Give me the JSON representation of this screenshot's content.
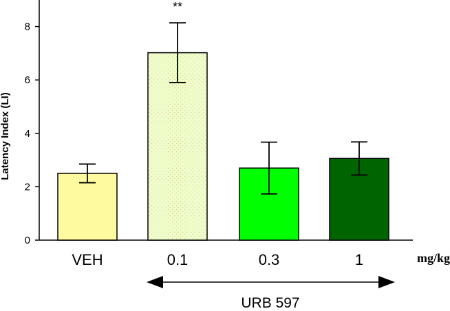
{
  "chart_data": {
    "type": "bar",
    "categories": [
      "VEH",
      "0.1",
      "0.3",
      "1"
    ],
    "values": [
      2.5,
      7.02,
      2.7,
      3.06
    ],
    "errors": [
      0.35,
      1.12,
      0.97,
      0.62
    ],
    "bar_colors": [
      "#fdfaa0",
      "#f1fccc",
      "#00ff00",
      "#006400"
    ],
    "bar_patterns": [
      "none",
      "dotted",
      "none",
      "none"
    ],
    "annotations": [
      {
        "category": "0.1",
        "text": "**"
      }
    ],
    "ylabel": "Latency Index (LI)",
    "xunit": "mg/kg",
    "group_label": "URB 597",
    "group_span": [
      "0.1",
      "1"
    ],
    "ylim": [
      0,
      9.2
    ],
    "yticks": [
      0,
      2,
      4,
      6,
      8
    ],
    "grid": false
  }
}
